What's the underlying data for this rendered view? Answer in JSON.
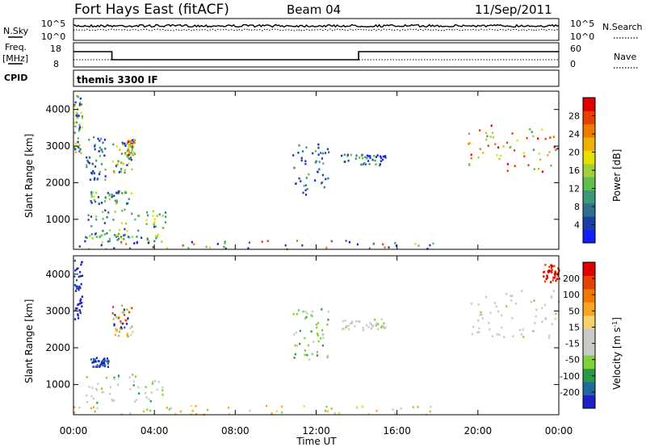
{
  "header": {
    "station": "Fort Hays East (fitACF)",
    "beam": "Beam 04",
    "date": "11/Sep/2011"
  },
  "top_strip": {
    "nsky_label": "N.Sky",
    "nsky_ticks": [
      "10^5",
      "10^0"
    ],
    "nsearch_label": "N.Search",
    "nsearch_ticks": [
      "10^5",
      "10^0"
    ],
    "freq_label": "Freq.",
    "freq_unit": "[MHz]",
    "freq_ticks": [
      "18",
      "8"
    ],
    "nave_label": "Nave",
    "nave_ticks": [
      "60",
      "0"
    ],
    "cpid_label": "CPID",
    "cpid_value": "themis 3300 IF"
  },
  "chart_data": [
    {
      "type": "heatmap",
      "name": "power-panel",
      "ylabel": "Slant Range [km]",
      "xlabel": "Time UT",
      "xlim_hours": [
        0,
        24
      ],
      "ylim_km": [
        180,
        4500
      ],
      "y_ticks": [
        "1000",
        "2000",
        "3000",
        "4000"
      ],
      "colorbar": {
        "label": "Power [dB]",
        "ticks": [
          "4",
          "8",
          "12",
          "16",
          "20",
          "24",
          "28"
        ],
        "colors": [
          "#0f1fff",
          "#1b3fa8",
          "#2f6f8f",
          "#3a9a78",
          "#5fbf4a",
          "#9fd13a",
          "#e6e000",
          "#f0b000",
          "#f07a00",
          "#e84000",
          "#e00000"
        ]
      },
      "echo_regions": [
        {
          "t0": 0.0,
          "t1": 0.4,
          "r0": 2800,
          "r1": 4400,
          "level": "mixed"
        },
        {
          "t0": 0.6,
          "t1": 1.6,
          "r0": 2100,
          "r1": 3300,
          "level": "low"
        },
        {
          "t0": 0.8,
          "t1": 2.9,
          "r0": 1450,
          "r1": 1800,
          "level": "mid"
        },
        {
          "t0": 0.7,
          "t1": 4.6,
          "r0": 700,
          "r1": 1300,
          "level": "mid"
        },
        {
          "t0": 0.5,
          "t1": 4.4,
          "r0": 400,
          "r1": 650,
          "level": "mid"
        },
        {
          "t0": 1.9,
          "t1": 2.9,
          "r0": 2300,
          "r1": 3200,
          "level": "mixed"
        },
        {
          "t0": 2.6,
          "t1": 3.0,
          "r0": 2700,
          "r1": 3200,
          "level": "high"
        },
        {
          "t0": 10.8,
          "t1": 12.6,
          "r0": 1700,
          "r1": 3100,
          "level": "low"
        },
        {
          "t0": 13.2,
          "t1": 15.4,
          "r0": 2500,
          "r1": 2800,
          "level": "low"
        },
        {
          "t0": 19.5,
          "t1": 24.0,
          "r0": 2300,
          "r1": 3600,
          "level": "high"
        },
        {
          "t0": 0.0,
          "t1": 18.0,
          "r0": 200,
          "r1": 450,
          "level": "ground"
        }
      ]
    },
    {
      "type": "heatmap",
      "name": "velocity-panel",
      "ylabel": "Slant Range [km]",
      "xlabel": "Time UT",
      "xlim_hours": [
        0,
        24
      ],
      "ylim_km": [
        180,
        4500
      ],
      "y_ticks": [
        "1000",
        "2000",
        "3000",
        "4000"
      ],
      "colorbar": {
        "label_text": "Velocity [m s",
        "label_sup": "-1",
        "ticks": [
          "200",
          "100",
          "50",
          "15",
          "-15",
          "-50",
          "-100",
          "-200"
        ],
        "colors": [
          "#1c22c8",
          "#1f6a9c",
          "#2a9a4a",
          "#7fd23a",
          "#c9c9c5",
          "#c9c9c5",
          "#f7d26a",
          "#f5a623",
          "#f07a00",
          "#e84000",
          "#e00000"
        ]
      },
      "echo_regions": [
        {
          "t0": 0.0,
          "t1": 0.4,
          "r0": 2800,
          "r1": 4400,
          "level": "blue"
        },
        {
          "t0": 0.8,
          "t1": 1.7,
          "r0": 1500,
          "r1": 1750,
          "level": "blue"
        },
        {
          "t0": 0.6,
          "t1": 4.4,
          "r0": 500,
          "r1": 1300,
          "level": "green-gray"
        },
        {
          "t0": 1.9,
          "t1": 2.9,
          "r0": 2300,
          "r1": 3200,
          "level": "mixed"
        },
        {
          "t0": 10.8,
          "t1": 12.6,
          "r0": 1700,
          "r1": 3100,
          "level": "green"
        },
        {
          "t0": 13.2,
          "t1": 15.4,
          "r0": 2500,
          "r1": 2800,
          "level": "gray"
        },
        {
          "t0": 19.5,
          "t1": 24.0,
          "r0": 2300,
          "r1": 3600,
          "level": "gray"
        },
        {
          "t0": 23.2,
          "t1": 24.0,
          "r0": 3800,
          "r1": 4300,
          "level": "red"
        },
        {
          "t0": 0.0,
          "t1": 18.0,
          "r0": 200,
          "r1": 450,
          "level": "orange-ground"
        }
      ]
    }
  ],
  "x_ticks": [
    "00:00",
    "04:00",
    "08:00",
    "12:00",
    "16:00",
    "20:00",
    "00:00"
  ],
  "x_axis_label": "Time UT"
}
